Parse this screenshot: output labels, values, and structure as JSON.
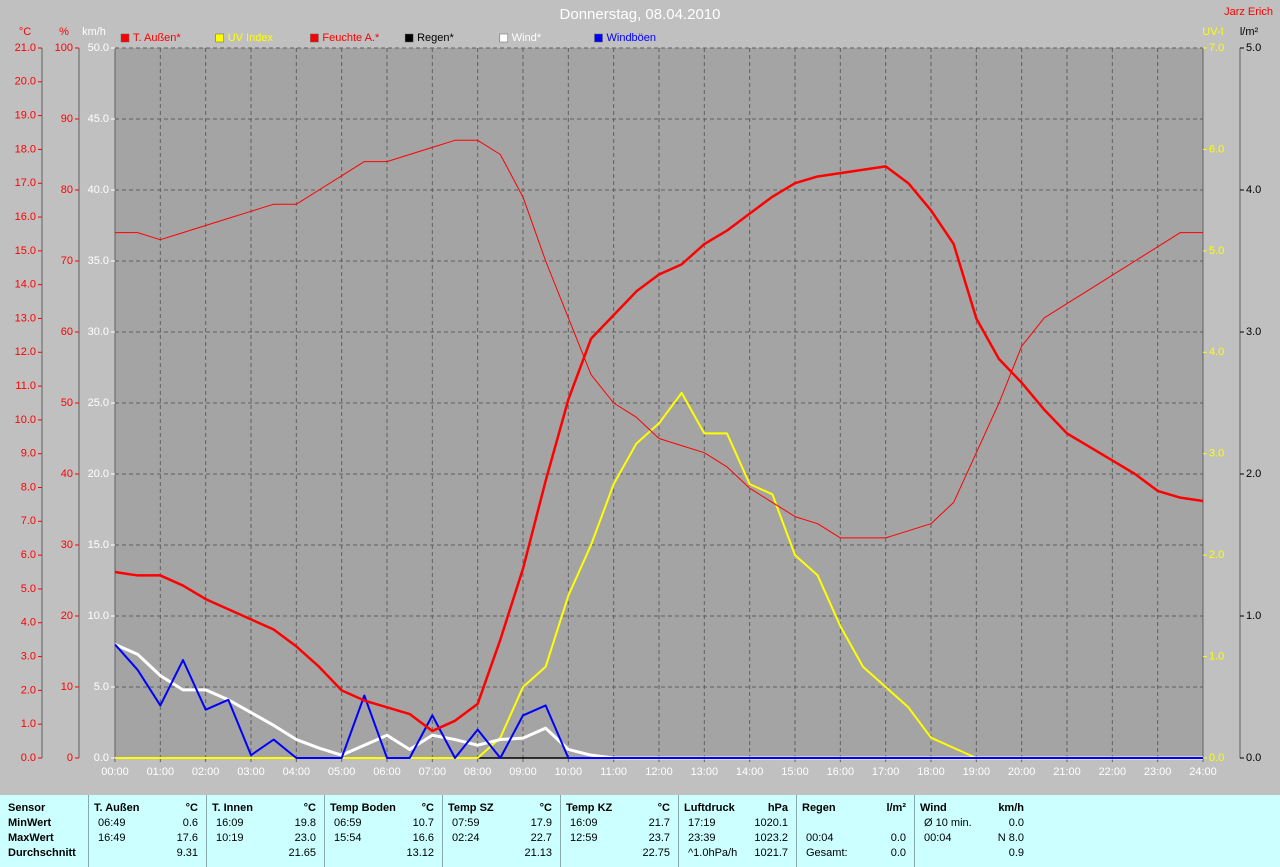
{
  "chart_data": {
    "type": "line",
    "title": "Donnerstag, 08.04.2010",
    "author": "Jarz Erich",
    "x": [
      0,
      0.5,
      1,
      1.5,
      2,
      2.5,
      3,
      3.5,
      4,
      4.5,
      5,
      5.5,
      6,
      6.5,
      7,
      7.5,
      8,
      8.5,
      9,
      9.5,
      10,
      10.5,
      11,
      11.5,
      12,
      12.5,
      13,
      13.5,
      14,
      14.5,
      15,
      15.5,
      16,
      16.5,
      17,
      17.5,
      18,
      18.5,
      19,
      19.5,
      20,
      20.5,
      21,
      21.5,
      22,
      22.5,
      23,
      23.5,
      24
    ],
    "xlim": [
      0,
      24
    ],
    "xticks": [
      {
        "value": 0,
        "label": "00:00"
      },
      {
        "value": 1,
        "label": "01:00"
      },
      {
        "value": 2,
        "label": "02:00"
      },
      {
        "value": 3,
        "label": "03:00"
      },
      {
        "value": 4,
        "label": "04:00"
      },
      {
        "value": 5,
        "label": "05:00"
      },
      {
        "value": 6,
        "label": "06:00"
      },
      {
        "value": 7,
        "label": "07:00"
      },
      {
        "value": 8,
        "label": "08:00"
      },
      {
        "value": 9,
        "label": "09:00"
      },
      {
        "value": 10,
        "label": "10:00"
      },
      {
        "value": 11,
        "label": "11:00"
      },
      {
        "value": 12,
        "label": "12:00"
      },
      {
        "value": 13,
        "label": "13:00"
      },
      {
        "value": 14,
        "label": "14:00"
      },
      {
        "value": 15,
        "label": "15:00"
      },
      {
        "value": 16,
        "label": "16:00"
      },
      {
        "value": 17,
        "label": "17:00"
      },
      {
        "value": 18,
        "label": "18:00"
      },
      {
        "value": 19,
        "label": "19:00"
      },
      {
        "value": 20,
        "label": "20:00"
      },
      {
        "value": 21,
        "label": "21:00"
      },
      {
        "value": 22,
        "label": "22:00"
      },
      {
        "value": 23,
        "label": "23:00"
      },
      {
        "value": 24,
        "label": "24:00"
      }
    ],
    "ylabel": "°C",
    "ylim": [
      0,
      21
    ],
    "yticks": [
      {
        "value": 0,
        "label": "0.0"
      },
      {
        "value": 1,
        "label": "1.0"
      },
      {
        "value": 2,
        "label": "2.0"
      },
      {
        "value": 3,
        "label": "3.0"
      },
      {
        "value": 4,
        "label": "4.0"
      },
      {
        "value": 5,
        "label": "5.0"
      },
      {
        "value": 6,
        "label": "6.0"
      },
      {
        "value": 7,
        "label": "7.0"
      },
      {
        "value": 8,
        "label": "8.0"
      },
      {
        "value": 9,
        "label": "9.0"
      },
      {
        "value": 10,
        "label": "10.0"
      },
      {
        "value": 11,
        "label": "11.0"
      },
      {
        "value": 12,
        "label": "12.0"
      },
      {
        "value": 13,
        "label": "13.0"
      },
      {
        "value": 14,
        "label": "14.0"
      },
      {
        "value": 15,
        "label": "15.0"
      },
      {
        "value": 16,
        "label": "16.0"
      },
      {
        "value": 17,
        "label": "17.0"
      },
      {
        "value": 18,
        "label": "18.0"
      },
      {
        "value": 19,
        "label": "19.0"
      },
      {
        "value": 20,
        "label": "20.0"
      },
      {
        "value": 21,
        "label": "21.0"
      }
    ],
    "y2label": "%",
    "y2lim": [
      0,
      100
    ],
    "y2ticks": [
      0,
      10,
      20,
      30,
      40,
      50,
      60,
      70,
      80,
      90,
      100
    ],
    "y3label": "km/h",
    "y3lim": [
      0,
      50
    ],
    "y3ticks": [
      {
        "value": 0,
        "label": "0.0"
      },
      {
        "value": 5,
        "label": "5.0"
      },
      {
        "value": 10,
        "label": "10.0"
      },
      {
        "value": 15,
        "label": "15.0"
      },
      {
        "value": 20,
        "label": "20.0"
      },
      {
        "value": 25,
        "label": "25.0"
      },
      {
        "value": 30,
        "label": "30.0"
      },
      {
        "value": 35,
        "label": "35.0"
      },
      {
        "value": 40,
        "label": "40.0"
      },
      {
        "value": 45,
        "label": "45.0"
      },
      {
        "value": 50,
        "label": "50.0"
      }
    ],
    "y4label": "UV-I",
    "y4lim": [
      0,
      7
    ],
    "y4ticks": [
      {
        "value": 0,
        "label": "0.0"
      },
      {
        "value": 1,
        "label": "1.0"
      },
      {
        "value": 2,
        "label": "2.0"
      },
      {
        "value": 3,
        "label": "3.0"
      },
      {
        "value": 4,
        "label": "4.0"
      },
      {
        "value": 5,
        "label": "5.0"
      },
      {
        "value": 6,
        "label": "6.0"
      },
      {
        "value": 7,
        "label": "7.0"
      }
    ],
    "y5label": "l/m²",
    "y5lim": [
      0,
      5
    ],
    "y5ticks": [
      {
        "value": 0,
        "label": "0.0"
      },
      {
        "value": 1,
        "label": "1.0"
      },
      {
        "value": 2,
        "label": "2.0"
      },
      {
        "value": 3,
        "label": "3.0"
      },
      {
        "value": 4,
        "label": "4.0"
      },
      {
        "value": 5,
        "label": "5.0"
      }
    ],
    "grid": true,
    "series": [
      {
        "name": "T. Außen*",
        "color": "#ff0000",
        "axis": "y",
        "values": [
          5.5,
          5.4,
          5.4,
          5.1,
          4.7,
          4.4,
          4.1,
          3.8,
          3.3,
          2.7,
          2.0,
          1.7,
          1.5,
          1.3,
          0.8,
          1.1,
          1.6,
          3.5,
          5.6,
          8.2,
          10.6,
          12.4,
          13.1,
          13.8,
          14.3,
          14.6,
          15.2,
          15.6,
          16.1,
          16.6,
          17.0,
          17.2,
          17.3,
          17.4,
          17.5,
          17.0,
          16.2,
          15.2,
          13.0,
          11.8,
          11.1,
          10.3,
          9.6,
          9.2,
          8.8,
          8.4,
          7.9,
          7.7,
          7.6
        ]
      },
      {
        "name": "UV Index",
        "color": "#ffff00",
        "axis": "y4",
        "values": [
          0,
          0,
          0,
          0,
          0,
          0,
          0,
          0,
          0,
          0,
          0,
          0,
          0,
          0,
          0,
          0,
          0,
          0.2,
          0.7,
          0.9,
          1.6,
          2.1,
          2.7,
          3.1,
          3.3,
          3.6,
          3.2,
          3.2,
          2.7,
          2.6,
          2.0,
          1.8,
          1.3,
          0.9,
          0.7,
          0.5,
          0.2,
          0.1,
          0,
          0,
          0,
          0,
          0,
          0,
          0,
          0,
          0,
          0,
          0
        ]
      },
      {
        "name": "Feuchte A.*",
        "color": "#ff0000",
        "axis": "y2",
        "values": [
          74,
          74,
          73,
          74,
          75,
          76,
          77,
          78,
          78,
          80,
          82,
          84,
          84,
          85,
          86,
          87,
          87,
          85,
          79,
          70,
          62,
          54,
          50,
          48,
          45,
          44,
          43,
          41,
          38,
          36,
          34,
          33,
          31,
          31,
          31,
          32,
          33,
          36,
          43,
          50,
          58,
          62,
          64,
          66,
          68,
          70,
          72,
          74,
          74
        ]
      },
      {
        "name": "Regen*",
        "color": "#000000",
        "axis": "y5",
        "values": [
          0,
          0,
          0,
          0,
          0,
          0,
          0,
          0,
          0,
          0,
          0,
          0,
          0,
          0,
          0,
          0,
          0,
          0,
          0,
          0,
          0,
          0,
          0,
          0,
          0,
          0,
          0,
          0,
          0,
          0,
          0,
          0,
          0,
          0,
          0,
          0,
          0,
          0,
          0,
          0,
          0,
          0,
          0,
          0,
          0,
          0,
          0,
          0,
          0
        ]
      },
      {
        "name": "Wind*",
        "color": "#ffffff",
        "axis": "y3",
        "values": [
          8.0,
          7.3,
          5.8,
          4.8,
          4.8,
          4.1,
          3.2,
          2.3,
          1.3,
          0.7,
          0.2,
          0.9,
          1.6,
          0.6,
          1.6,
          1.3,
          0.9,
          1.3,
          1.4,
          2.1,
          0.6,
          0.2,
          0,
          0,
          0,
          0,
          0,
          0,
          0,
          0,
          0,
          0,
          0,
          0,
          0,
          0,
          0,
          0,
          0,
          0,
          0,
          0,
          0,
          0,
          0,
          0,
          0,
          0,
          0
        ]
      },
      {
        "name": "Windböen",
        "color": "#0000ff",
        "axis": "y3",
        "values": [
          8.0,
          6.2,
          3.7,
          6.9,
          3.4,
          4.1,
          0.2,
          1.3,
          0,
          0,
          0,
          4.4,
          0,
          0,
          3.0,
          0,
          2.0,
          0,
          3.0,
          3.7,
          0,
          0,
          0,
          0,
          0,
          0,
          0,
          0,
          0,
          0,
          0,
          0,
          0,
          0,
          0,
          0,
          0,
          0,
          0,
          0,
          0,
          0,
          0,
          0,
          0,
          0,
          0,
          0,
          0
        ]
      }
    ]
  },
  "table": {
    "row_labels": [
      "Sensor",
      "MinWert",
      "MaxWert",
      "Durchschnitt"
    ],
    "columns": [
      {
        "name": "T. Außen",
        "unit": "°C",
        "rows": [
          [
            "06:49",
            "0.6"
          ],
          [
            "16:49",
            "17.6"
          ],
          [
            null,
            "9.31"
          ]
        ]
      },
      {
        "name": "T. Innen",
        "unit": "°C",
        "rows": [
          [
            "16:09",
            "19.8"
          ],
          [
            "10:19",
            "23.0"
          ],
          [
            null,
            "21.65"
          ]
        ]
      },
      {
        "name": "Temp Boden",
        "unit": "°C",
        "rows": [
          [
            "06:59",
            "10.7"
          ],
          [
            "15:54",
            "16.6"
          ],
          [
            null,
            "13.12"
          ]
        ]
      },
      {
        "name": "Temp SZ",
        "unit": "°C",
        "rows": [
          [
            "07:59",
            "17.9"
          ],
          [
            "02:24",
            "22.7"
          ],
          [
            null,
            "21.13"
          ]
        ]
      },
      {
        "name": "Temp KZ",
        "unit": "°C",
        "rows": [
          [
            "16:09",
            "21.7"
          ],
          [
            "12:59",
            "23.7"
          ],
          [
            null,
            "22.75"
          ]
        ]
      },
      {
        "name": "Luftdruck",
        "unit": "hPa",
        "rows": [
          [
            "17:19",
            "1020.1"
          ],
          [
            "23:39",
            "1023.2"
          ],
          [
            "^1.0hPa/h",
            "1021.7"
          ]
        ]
      },
      {
        "name": "Regen",
        "unit": "l/m²",
        "rows": [
          [
            null,
            null
          ],
          [
            "00:04",
            "0.0"
          ],
          [
            "Gesamt:",
            "0.0"
          ]
        ]
      },
      {
        "name": "Wind",
        "unit": "km/h",
        "rows": [
          [
            "Ø 10 min.",
            "0.0"
          ],
          [
            "00:04",
            "N 8.0"
          ],
          [
            null,
            "0.9"
          ]
        ]
      }
    ]
  }
}
